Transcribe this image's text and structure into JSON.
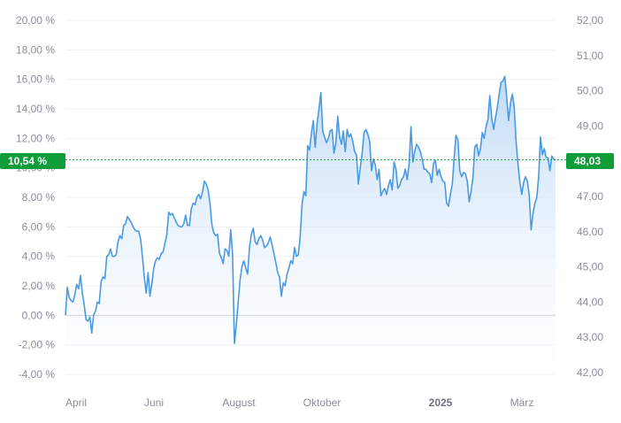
{
  "chart_data": {
    "type": "area",
    "y_left": {
      "ticks": [
        "20,00 %",
        "18,00 %",
        "16,00 %",
        "14,00 %",
        "12,00 %",
        "10,00 %",
        "8,00 %",
        "6,00 %",
        "4,00 %",
        "2,00 %",
        "0,00 %",
        "-2,00 %",
        "-4,00 %"
      ],
      "range": [
        -4,
        20
      ]
    },
    "y_right": {
      "ticks": [
        "52,00",
        "51,00",
        "50,00",
        "49,00",
        "48,00",
        "47,00",
        "46,00",
        "45,00",
        "44,00",
        "43,00",
        "42,00"
      ],
      "range": [
        42,
        52
      ]
    },
    "x_labels": [
      "April",
      "Juni",
      "August",
      "Oktober",
      "2025",
      "März"
    ],
    "x_labels_bold": [
      "2025"
    ],
    "current_value_left": "10,54 %",
    "current_value_right": "48,03",
    "current_pct": 10.54,
    "colors": {
      "line": "#4a9ae3",
      "fill_top": "#bcd8f6",
      "fill_bottom": "#ffffff",
      "badge": "#0f9d3a",
      "grid": "#eef0f3",
      "zero": "#b8bcc4",
      "ref_line": "#0f9d3a"
    },
    "series": [
      {
        "values": [
          0.0,
          1.9,
          1.2,
          1.0,
          0.9,
          1.4,
          2.1,
          1.8,
          2.7,
          1.5,
          0.7,
          -0.3,
          -0.4,
          -0.1,
          -1.2,
          0.0,
          0.3,
          0.9,
          0.8,
          2.3,
          2.6,
          2.5,
          4.0,
          4.1,
          4.5,
          4.0,
          4.0,
          4.1,
          5.0,
          5.4,
          5.2,
          6.1,
          6.2,
          6.7,
          6.5,
          6.3,
          6.0,
          5.8,
          5.7,
          5.7,
          5.2,
          4.0,
          2.6,
          1.5,
          2.9,
          1.3,
          2.1,
          3.2,
          3.7,
          3.9,
          3.8,
          4.2,
          4.3,
          4.9,
          5.5,
          7.0,
          6.8,
          6.9,
          6.6,
          6.3,
          6.1,
          6.0,
          6.0,
          6.2,
          6.8,
          6.1,
          6.1,
          7.2,
          7.6,
          7.5,
          8.0,
          8.2,
          7.9,
          8.4,
          9.1,
          8.9,
          8.5,
          7.6,
          6.1,
          5.6,
          5.4,
          5.5,
          4.2,
          3.9,
          3.5,
          4.5,
          4.4,
          4.0,
          5.8,
          4.2,
          -1.9,
          -0.6,
          0.9,
          2.4,
          3.3,
          3.7,
          3.2,
          2.8,
          4.6,
          5.5,
          5.9,
          5.0,
          4.8,
          5.2,
          5.4,
          5.1,
          4.6,
          4.7,
          4.9,
          5.3,
          4.8,
          4.2,
          3.6,
          2.9,
          2.6,
          1.3,
          2.2,
          2.0,
          2.8,
          3.2,
          3.7,
          3.5,
          4.6,
          4.0,
          4.1,
          5.3,
          7.5,
          8.4,
          8.1,
          11.5,
          11.2,
          12.4,
          13.2,
          11.4,
          13.0,
          14.0,
          15.1,
          12.5,
          12.1,
          11.7,
          12.0,
          12.5,
          12.6,
          11.0,
          11.7,
          13.5,
          12.1,
          11.6,
          12.5,
          11.1,
          12.6,
          12.1,
          12.3,
          11.8,
          11.1,
          10.9,
          8.9,
          10.0,
          11.0,
          12.4,
          12.6,
          12.3,
          11.8,
          9.8,
          10.6,
          10.2,
          9.2,
          9.9,
          8.1,
          8.4,
          8.6,
          8.2,
          8.8,
          9.2,
          8.5,
          10.4,
          9.9,
          8.6,
          8.8,
          9.2,
          9.4,
          9.9,
          9.2,
          10.2,
          12.8,
          10.4,
          11.1,
          11.6,
          11.4,
          11.1,
          10.6,
          9.9,
          9.9,
          9.7,
          9.6,
          9.0,
          10.3,
          10.5,
          9.5,
          9.9,
          9.4,
          9.1,
          9.0,
          7.6,
          7.4,
          8.2,
          8.9,
          10.7,
          12.2,
          11.9,
          9.8,
          9.4,
          9.7,
          9.6,
          9.1,
          7.7,
          8.4,
          9.3,
          11.4,
          11.6,
          10.8,
          11.3,
          12.4,
          12.0,
          12.8,
          13.3,
          14.9,
          13.4,
          12.6,
          13.4,
          14.1,
          15.0,
          15.8,
          15.9,
          16.2,
          14.8,
          13.2,
          14.4,
          15.0,
          14.1,
          11.8,
          10.3,
          9.0,
          8.2,
          9.0,
          9.4,
          9.1,
          8.1,
          5.8,
          6.9,
          7.6,
          8.0,
          9.4,
          12.1,
          10.9,
          11.3,
          10.7,
          10.7,
          9.8,
          10.8,
          10.6,
          10.54
        ]
      }
    ]
  }
}
